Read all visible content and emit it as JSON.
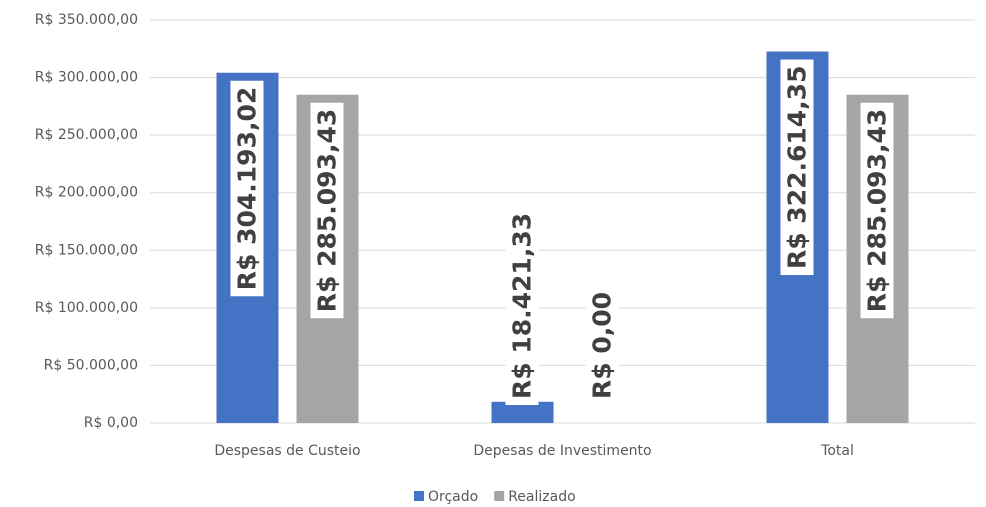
{
  "chart_data": {
    "type": "bar",
    "categories": [
      "Despesas de Custeio",
      "Depesas de Investimento",
      "Total"
    ],
    "series": [
      {
        "name": "Orçado",
        "color": "#4472c4",
        "values": [
          304193.02,
          18421.33,
          322614.35
        ],
        "value_labels": [
          "R$ 304.193,02",
          "R$ 18.421,33",
          "R$ 322.614,35"
        ]
      },
      {
        "name": "Realizado",
        "color": "#a5a5a5",
        "values": [
          285093.43,
          0,
          285093.43
        ],
        "value_labels": [
          "R$ 285.093,43",
          "R$ 0,00",
          "R$ 285.093,43"
        ]
      }
    ],
    "ylim": [
      0,
      350000
    ],
    "yticks": [
      {
        "value": 0,
        "label": "R$ 0,00"
      },
      {
        "value": 50000,
        "label": "R$ 50.000,00"
      },
      {
        "value": 100000,
        "label": "R$ 100.000,00"
      },
      {
        "value": 150000,
        "label": "R$ 150.000,00"
      },
      {
        "value": 200000,
        "label": "R$ 200.000,00"
      },
      {
        "value": 250000,
        "label": "R$ 250.000,00"
      },
      {
        "value": 300000,
        "label": "R$ 300.000,00"
      },
      {
        "value": 350000,
        "label": "R$ 350.000,00"
      }
    ],
    "grid": true,
    "legend": "bottom"
  }
}
